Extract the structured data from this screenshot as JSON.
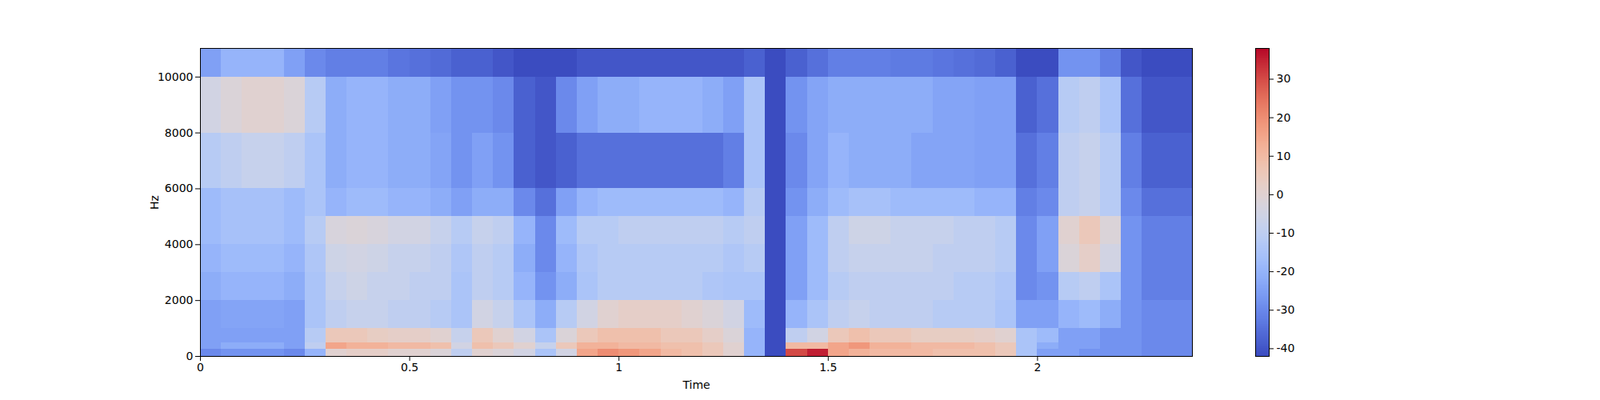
{
  "chart_data": {
    "type": "heatmap",
    "x_label": "Time",
    "y_label": "Hz",
    "xlim": [
      0,
      2.37
    ],
    "xticks": [
      0,
      0.5,
      1,
      1.5,
      2
    ],
    "ylim": [
      0,
      11025
    ],
    "yticks": [
      0,
      2000,
      4000,
      6000,
      8000,
      10000
    ],
    "time_bins": [
      0,
      0.05,
      0.1,
      0.15,
      0.2,
      0.25,
      0.3,
      0.35,
      0.4,
      0.45,
      0.5,
      0.55,
      0.6,
      0.65,
      0.7,
      0.75,
      0.8,
      0.85,
      0.9,
      0.95,
      1,
      1.05,
      1.1,
      1.15,
      1.2,
      1.25,
      1.3,
      1.35,
      1.4,
      1.45,
      1.5,
      1.55,
      1.6,
      1.65,
      1.7,
      1.75,
      1.8,
      1.85,
      1.9,
      1.95,
      2,
      2.05,
      2.1,
      2.15,
      2.2,
      2.25,
      2.37
    ],
    "freq_bins": [
      0,
      250,
      500,
      1000,
      2000,
      3000,
      4000,
      5000,
      6000,
      8000,
      10000,
      11025
    ],
    "cells": [
      [
        -30,
        -28,
        -28,
        -28,
        -30,
        -20,
        0,
        2,
        2,
        0,
        0,
        -2,
        -10,
        0,
        -2,
        -5,
        -15,
        -5,
        15,
        20,
        18,
        15,
        10,
        8,
        5,
        0,
        -20,
        -42,
        30,
        35,
        15,
        12,
        10,
        10,
        10,
        8,
        8,
        8,
        5,
        -15,
        -25,
        -25,
        -28,
        -28,
        -28,
        -30
      ],
      [
        -25,
        -22,
        -22,
        -22,
        -25,
        -10,
        15,
        12,
        12,
        10,
        10,
        8,
        -5,
        8,
        5,
        0,
        -8,
        5,
        12,
        12,
        10,
        10,
        8,
        8,
        5,
        0,
        -20,
        -42,
        10,
        10,
        15,
        18,
        12,
        12,
        10,
        10,
        10,
        8,
        5,
        -15,
        -22,
        -25,
        -25,
        -28,
        -28,
        -30
      ],
      [
        -25,
        -25,
        -25,
        -25,
        -25,
        -12,
        5,
        5,
        3,
        2,
        2,
        0,
        -8,
        5,
        0,
        -5,
        -15,
        -2,
        5,
        8,
        8,
        8,
        5,
        5,
        2,
        -2,
        -20,
        -42,
        -10,
        -5,
        5,
        8,
        5,
        5,
        3,
        3,
        3,
        2,
        0,
        -15,
        -18,
        -25,
        -25,
        -28,
        -28,
        -30
      ],
      [
        -25,
        -24,
        -24,
        -24,
        -25,
        -15,
        -10,
        -8,
        -8,
        -10,
        -10,
        -12,
        -15,
        -5,
        -8,
        -15,
        -22,
        -12,
        -5,
        0,
        2,
        2,
        2,
        0,
        -2,
        -5,
        -18,
        -42,
        -20,
        -15,
        -10,
        -8,
        -10,
        -10,
        -10,
        -12,
        -12,
        -12,
        -15,
        -25,
        -25,
        -20,
        -18,
        -22,
        -28,
        -30
      ],
      [
        -22,
        -20,
        -20,
        -20,
        -22,
        -15,
        -8,
        -6,
        -8,
        -8,
        -10,
        -10,
        -15,
        -10,
        -12,
        -20,
        -28,
        -22,
        -15,
        -12,
        -12,
        -12,
        -12,
        -12,
        -14,
        -15,
        -15,
        -42,
        -25,
        -18,
        -12,
        -10,
        -10,
        -10,
        -10,
        -10,
        -12,
        -12,
        -14,
        -30,
        -28,
        -12,
        -10,
        -15,
        -28,
        -32
      ],
      [
        -20,
        -18,
        -18,
        -18,
        -20,
        -14,
        -6,
        -5,
        -6,
        -8,
        -8,
        -10,
        -14,
        -10,
        -12,
        -22,
        -30,
        -20,
        -14,
        -12,
        -12,
        -12,
        -12,
        -12,
        -12,
        -14,
        -12,
        -42,
        -25,
        -18,
        -10,
        -8,
        -8,
        -8,
        -8,
        -10,
        -10,
        -10,
        -12,
        -30,
        -25,
        -2,
        2,
        -5,
        -28,
        -32
      ],
      [
        -18,
        -16,
        -16,
        -16,
        -18,
        -12,
        -3,
        -2,
        -3,
        -5,
        -5,
        -8,
        -12,
        -8,
        -10,
        -20,
        -30,
        -18,
        -12,
        -12,
        -10,
        -10,
        -10,
        -10,
        -10,
        -12,
        -10,
        -42,
        -25,
        -18,
        -10,
        -6,
        -6,
        -8,
        -8,
        -8,
        -10,
        -10,
        -12,
        -30,
        -25,
        0,
        5,
        -2,
        -28,
        -32
      ],
      [
        -18,
        -16,
        -16,
        -16,
        -18,
        -15,
        -20,
        -18,
        -18,
        -20,
        -20,
        -22,
        -25,
        -22,
        -22,
        -30,
        -35,
        -25,
        -20,
        -18,
        -18,
        -18,
        -18,
        -18,
        -18,
        -20,
        -12,
        -42,
        -28,
        -22,
        -18,
        -16,
        -16,
        -18,
        -18,
        -18,
        -18,
        -20,
        -20,
        -32,
        -30,
        -10,
        -8,
        -12,
        -30,
        -35
      ],
      [
        -12,
        -10,
        -8,
        -8,
        -10,
        -15,
        -22,
        -20,
        -20,
        -22,
        -22,
        -24,
        -28,
        -25,
        -28,
        -38,
        -40,
        -38,
        -35,
        -35,
        -35,
        -35,
        -35,
        -35,
        -35,
        -32,
        -15,
        -42,
        -30,
        -24,
        -20,
        -22,
        -22,
        -22,
        -24,
        -24,
        -24,
        -25,
        -25,
        -35,
        -32,
        -10,
        -8,
        -12,
        -32,
        -38
      ],
      [
        -5,
        -2,
        0,
        0,
        -2,
        -12,
        -22,
        -20,
        -20,
        -22,
        -22,
        -25,
        -28,
        -28,
        -30,
        -38,
        -40,
        -30,
        -25,
        -22,
        -22,
        -20,
        -20,
        -20,
        -22,
        -25,
        -15,
        -42,
        -28,
        -24,
        -22,
        -22,
        -22,
        -22,
        -22,
        -24,
        -24,
        -25,
        -25,
        -38,
        -35,
        -12,
        -10,
        -15,
        -35,
        -40
      ],
      [
        -25,
        -20,
        -20,
        -20,
        -25,
        -30,
        -32,
        -32,
        -32,
        -34,
        -35,
        -36,
        -38,
        -38,
        -40,
        -42,
        -42,
        -42,
        -40,
        -40,
        -40,
        -40,
        -40,
        -40,
        -40,
        -40,
        -38,
        -42,
        -38,
        -35,
        -32,
        -32,
        -32,
        -33,
        -33,
        -34,
        -35,
        -36,
        -38,
        -42,
        -42,
        -28,
        -28,
        -32,
        -40,
        -42
      ]
    ],
    "colorbar": {
      "range": [
        -42,
        38
      ],
      "ticks": [
        -40,
        -30,
        -20,
        -10,
        0,
        10,
        20,
        30
      ]
    }
  }
}
